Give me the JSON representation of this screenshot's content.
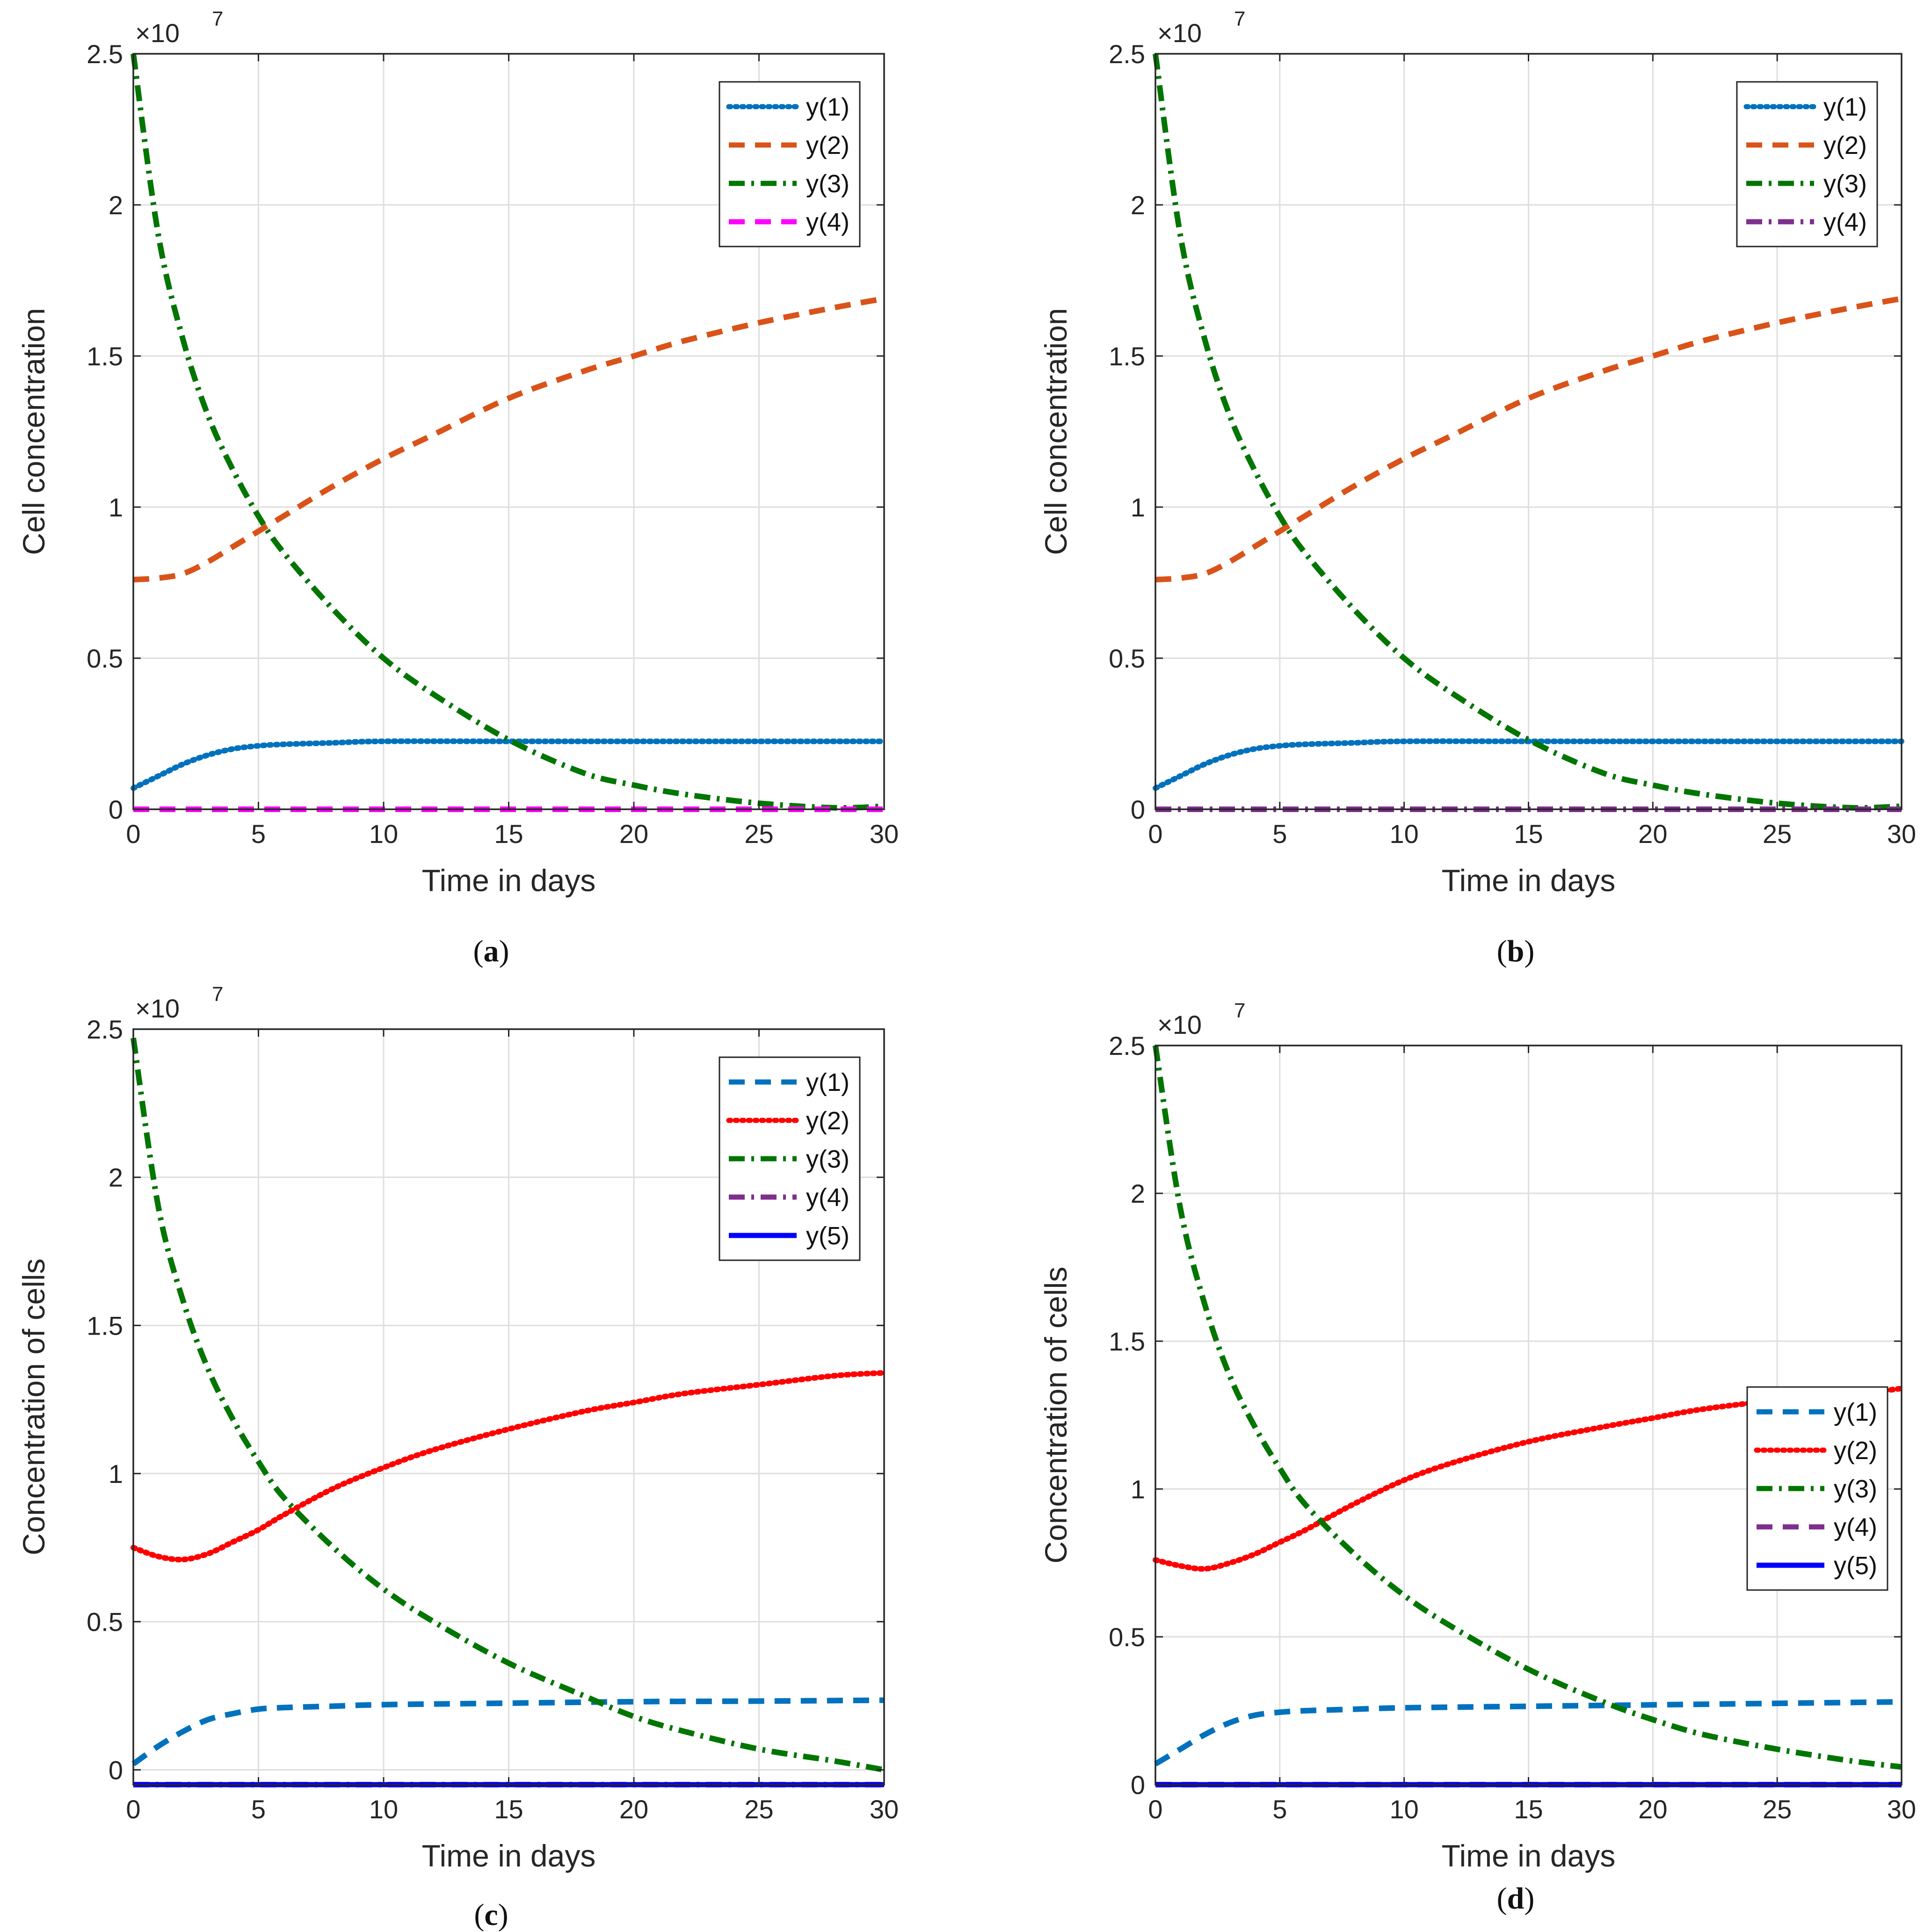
{
  "chart_data": [
    {
      "panel": "a",
      "caption_letter": "a",
      "type": "line",
      "xlabel": "Time in days",
      "ylabel": "Cell concentration",
      "exponent_label": "×10",
      "exponent_power": "7",
      "xlim": [
        0,
        30
      ],
      "ylim": [
        0,
        2.5
      ],
      "xticks": [
        0,
        5,
        10,
        15,
        20,
        25,
        30
      ],
      "yticks": [
        0,
        0.5,
        1,
        1.5,
        2,
        2.5
      ],
      "xtick_labels": [
        "0",
        "5",
        "10",
        "15",
        "20",
        "25",
        "30"
      ],
      "ytick_labels": [
        "0",
        "0.5",
        "1",
        "1.5",
        "2",
        "2.5"
      ],
      "grid": true,
      "legend_position": "top-right",
      "series": [
        {
          "name": "y(1)",
          "color": "#0072BD",
          "style": "dotted",
          "x": [
            0,
            1,
            2,
            3,
            4,
            5,
            6,
            8,
            10,
            15,
            20,
            25,
            30
          ],
          "y": [
            0.07,
            0.11,
            0.15,
            0.18,
            0.2,
            0.21,
            0.215,
            0.22,
            0.225,
            0.225,
            0.225,
            0.225,
            0.225
          ]
        },
        {
          "name": "y(2)",
          "color": "#D95319",
          "style": "dashed",
          "x": [
            0,
            1,
            2,
            3,
            4,
            5,
            6,
            8,
            10,
            12,
            15,
            18,
            20,
            22,
            25,
            28,
            30
          ],
          "y": [
            0.76,
            0.765,
            0.78,
            0.82,
            0.87,
            0.92,
            0.97,
            1.07,
            1.16,
            1.24,
            1.36,
            1.45,
            1.5,
            1.55,
            1.61,
            1.66,
            1.69
          ]
        },
        {
          "name": "y(3)",
          "color": "#007500",
          "style": "dashdot",
          "x": [
            0,
            1,
            2,
            3,
            4,
            5,
            6,
            8,
            10,
            12,
            15,
            18,
            20,
            22,
            25,
            28,
            30
          ],
          "y": [
            2.5,
            1.9,
            1.55,
            1.3,
            1.12,
            0.97,
            0.85,
            0.66,
            0.5,
            0.38,
            0.23,
            0.12,
            0.08,
            0.05,
            0.02,
            0.005,
            0.01
          ]
        },
        {
          "name": "y(4)",
          "color": "#FF00FF",
          "style": "dashed",
          "x": [
            0,
            30
          ],
          "y": [
            0,
            0
          ]
        }
      ]
    },
    {
      "panel": "b",
      "caption_letter": "b",
      "type": "line",
      "xlabel": "Time in days",
      "ylabel": "Cell concentration",
      "exponent_label": "×10",
      "exponent_power": "7",
      "xlim": [
        0,
        30
      ],
      "ylim": [
        0,
        2.5
      ],
      "xticks": [
        0,
        5,
        10,
        15,
        20,
        25,
        30
      ],
      "yticks": [
        0,
        0.5,
        1,
        1.5,
        2,
        2.5
      ],
      "xtick_labels": [
        "0",
        "5",
        "10",
        "15",
        "20",
        "25",
        "30"
      ],
      "ytick_labels": [
        "0",
        "0.5",
        "1",
        "1.5",
        "2",
        "2.5"
      ],
      "grid": true,
      "legend_position": "top-right",
      "series": [
        {
          "name": "y(1)",
          "color": "#0072BD",
          "style": "dotted",
          "x": [
            0,
            1,
            2,
            3,
            4,
            5,
            6,
            8,
            10,
            15,
            20,
            25,
            30
          ],
          "y": [
            0.07,
            0.11,
            0.15,
            0.18,
            0.2,
            0.21,
            0.215,
            0.22,
            0.225,
            0.225,
            0.225,
            0.225,
            0.225
          ]
        },
        {
          "name": "y(2)",
          "color": "#D95319",
          "style": "dashed",
          "x": [
            0,
            1,
            2,
            3,
            4,
            5,
            6,
            8,
            10,
            12,
            15,
            18,
            20,
            22,
            25,
            28,
            30
          ],
          "y": [
            0.76,
            0.765,
            0.78,
            0.82,
            0.87,
            0.92,
            0.97,
            1.07,
            1.16,
            1.24,
            1.36,
            1.45,
            1.5,
            1.55,
            1.61,
            1.66,
            1.69
          ]
        },
        {
          "name": "y(3)",
          "color": "#007500",
          "style": "dashdot",
          "x": [
            0,
            1,
            2,
            3,
            4,
            5,
            6,
            8,
            10,
            12,
            15,
            18,
            20,
            22,
            25,
            28,
            30
          ],
          "y": [
            2.5,
            1.9,
            1.55,
            1.3,
            1.12,
            0.97,
            0.85,
            0.66,
            0.5,
            0.38,
            0.23,
            0.12,
            0.08,
            0.05,
            0.02,
            0.005,
            0.01
          ]
        },
        {
          "name": "y(4)",
          "color": "#7E2F8E",
          "style": "dashdot",
          "x": [
            0,
            30
          ],
          "y": [
            0,
            0
          ]
        }
      ]
    },
    {
      "panel": "c",
      "caption_letter": "c",
      "type": "line",
      "xlabel": "Time in days",
      "ylabel": "Concentration of cells",
      "exponent_label": "×10",
      "exponent_power": "7",
      "xlim": [
        0,
        30
      ],
      "ylim": [
        -0.05,
        2.5
      ],
      "xticks": [
        0,
        5,
        10,
        15,
        20,
        25,
        30
      ],
      "yticks": [
        0,
        0.5,
        1,
        1.5,
        2,
        2.5
      ],
      "xtick_labels": [
        "0",
        "5",
        "10",
        "15",
        "20",
        "25",
        "30"
      ],
      "ytick_labels": [
        "0",
        "0.5",
        "1",
        "1.5",
        "2",
        "2.5"
      ],
      "grid": true,
      "legend_position": "top-right",
      "series": [
        {
          "name": "y(1)",
          "color": "#0072BD",
          "style": "dashed",
          "x": [
            0,
            1,
            2,
            3,
            4,
            5,
            6,
            8,
            10,
            15,
            20,
            25,
            30
          ],
          "y": [
            0.02,
            0.08,
            0.13,
            0.17,
            0.19,
            0.205,
            0.21,
            0.215,
            0.22,
            0.225,
            0.23,
            0.232,
            0.235
          ]
        },
        {
          "name": "y(2)",
          "color": "#FF0000",
          "style": "dotted",
          "x": [
            0,
            1,
            2,
            3,
            4,
            5,
            6,
            8,
            10,
            12,
            15,
            18,
            20,
            22,
            25,
            28,
            30
          ],
          "y": [
            0.75,
            0.72,
            0.71,
            0.73,
            0.77,
            0.81,
            0.86,
            0.95,
            1.02,
            1.08,
            1.15,
            1.21,
            1.24,
            1.27,
            1.3,
            1.33,
            1.34
          ]
        },
        {
          "name": "y(3)",
          "color": "#007500",
          "style": "dashdot",
          "x": [
            0,
            1,
            2,
            3,
            4,
            5,
            6,
            8,
            10,
            12,
            15,
            18,
            20,
            22,
            25,
            28,
            30
          ],
          "y": [
            2.47,
            1.9,
            1.58,
            1.35,
            1.18,
            1.04,
            0.92,
            0.75,
            0.61,
            0.5,
            0.36,
            0.25,
            0.18,
            0.13,
            0.07,
            0.03,
            0.0
          ]
        },
        {
          "name": "y(4)",
          "color": "#7E2F8E",
          "style": "dashdot",
          "x": [
            0,
            30
          ],
          "y": [
            -0.05,
            -0.05
          ]
        },
        {
          "name": "y(5)",
          "color": "#0000FF",
          "style": "solid",
          "x": [
            0,
            30
          ],
          "y": [
            -0.05,
            -0.05
          ]
        }
      ]
    },
    {
      "panel": "d",
      "caption_letter": "d",
      "type": "line",
      "xlabel": "Time in days",
      "ylabel": "Concentration of cells",
      "exponent_label": "×10",
      "exponent_power": "7",
      "xlim": [
        0,
        30
      ],
      "ylim": [
        0,
        2.5
      ],
      "xticks": [
        0,
        5,
        10,
        15,
        20,
        25,
        30
      ],
      "yticks": [
        0,
        0.5,
        1,
        1.5,
        2,
        2.5
      ],
      "xtick_labels": [
        "0",
        "5",
        "10",
        "15",
        "20",
        "25",
        "30"
      ],
      "ytick_labels": [
        "0",
        "0.5",
        "1",
        "1.5",
        "2",
        "2.5"
      ],
      "grid": true,
      "legend_position": "right",
      "series": [
        {
          "name": "y(1)",
          "color": "#0072BD",
          "style": "dashed",
          "x": [
            0,
            1,
            2,
            3,
            4,
            5,
            6,
            8,
            10,
            15,
            20,
            25,
            30
          ],
          "y": [
            0.07,
            0.12,
            0.17,
            0.21,
            0.235,
            0.245,
            0.25,
            0.255,
            0.26,
            0.265,
            0.27,
            0.275,
            0.28
          ]
        },
        {
          "name": "y(2)",
          "color": "#FF0000",
          "style": "dotted",
          "x": [
            0,
            1,
            2,
            3,
            4,
            5,
            6,
            8,
            10,
            12,
            15,
            18,
            20,
            22,
            25,
            28,
            30
          ],
          "y": [
            0.76,
            0.74,
            0.73,
            0.75,
            0.78,
            0.82,
            0.86,
            0.95,
            1.03,
            1.09,
            1.16,
            1.21,
            1.24,
            1.27,
            1.3,
            1.32,
            1.34
          ]
        },
        {
          "name": "y(3)",
          "color": "#007500",
          "style": "dashdot",
          "x": [
            0,
            1,
            2,
            3,
            4,
            5,
            6,
            8,
            10,
            12,
            15,
            18,
            20,
            22,
            25,
            28,
            30
          ],
          "y": [
            2.5,
            1.95,
            1.62,
            1.38,
            1.21,
            1.07,
            0.95,
            0.78,
            0.64,
            0.53,
            0.39,
            0.28,
            0.22,
            0.17,
            0.12,
            0.08,
            0.06
          ]
        },
        {
          "name": "y(4)",
          "color": "#7E2F8E",
          "style": "dashed",
          "x": [
            0,
            30
          ],
          "y": [
            0,
            0
          ]
        },
        {
          "name": "y(5)",
          "color": "#0000FF",
          "style": "solid",
          "x": [
            0,
            30
          ],
          "y": [
            0,
            0
          ]
        }
      ]
    }
  ]
}
